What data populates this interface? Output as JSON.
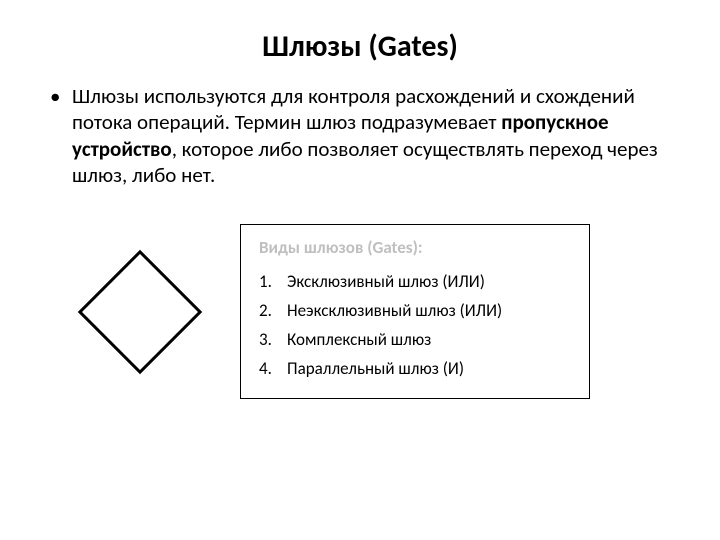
{
  "title": "Шлюзы (Gates)",
  "body": {
    "part1": "Шлюзы используются для контроля расхождений и схождений потока операций. Термин шлюз подразумевает ",
    "bold": "пропускное устройство",
    "part2": ", которое либо позволяет осуществлять переход через шлюз, либо нет."
  },
  "diamond": {
    "stroke_color": "#000000",
    "stroke_width": 3,
    "size": 88
  },
  "box": {
    "title": "Виды шлюзов (Gates):",
    "title_color": "#bfbfbf",
    "border_color": "#000000",
    "items": [
      "Эксклюзивный шлюз (ИЛИ)",
      "Неэксклюзивный шлюз (ИЛИ)",
      "Комплексный шлюз",
      "Параллельный шлюз (И)"
    ]
  },
  "colors": {
    "background": "#ffffff",
    "text": "#000000"
  },
  "fonts": {
    "title_size": 30,
    "body_size": 21,
    "box_size": 17
  }
}
